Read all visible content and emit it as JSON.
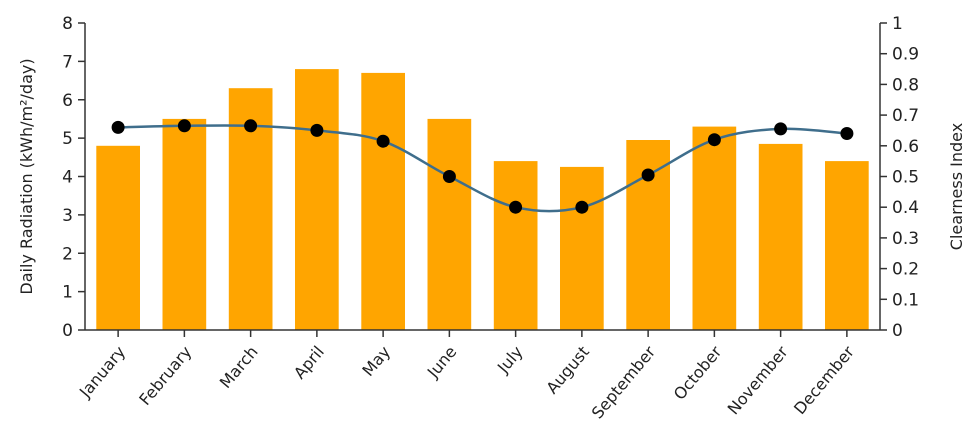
{
  "chart_data": {
    "type": "bar",
    "categories": [
      "January",
      "February",
      "March",
      "April",
      "May",
      "June",
      "July",
      "August",
      "September",
      "October",
      "November",
      "December"
    ],
    "series": [
      {
        "type": "bar",
        "axis": "left",
        "values": [
          4.8,
          5.5,
          6.3,
          6.8,
          6.7,
          5.5,
          4.4,
          4.25,
          4.95,
          5.3,
          4.85,
          4.4
        ],
        "color": "#FFA500"
      },
      {
        "type": "line",
        "axis": "right",
        "values": [
          0.66,
          0.665,
          0.665,
          0.65,
          0.615,
          0.5,
          0.4,
          0.4,
          0.505,
          0.62,
          0.655,
          0.64
        ],
        "line_color": "#3F6E8C",
        "marker_color": "#000000"
      }
    ],
    "ylabel_left": "Daily Radiation (kWh/m²/day)",
    "ylabel_right": "Clearness Index",
    "ylim_left": [
      0,
      8
    ],
    "yticks_left": [
      "0",
      "1",
      "2",
      "3",
      "4",
      "5",
      "6",
      "7",
      "8"
    ],
    "ylim_right": [
      0,
      1
    ],
    "yticks_right": [
      "0",
      "0.1",
      "0.2",
      "0.3",
      "0.4",
      "0.5",
      "0.6",
      "0.7",
      "0.8",
      "0.9",
      "1"
    ],
    "grid": false,
    "legend": "none"
  }
}
